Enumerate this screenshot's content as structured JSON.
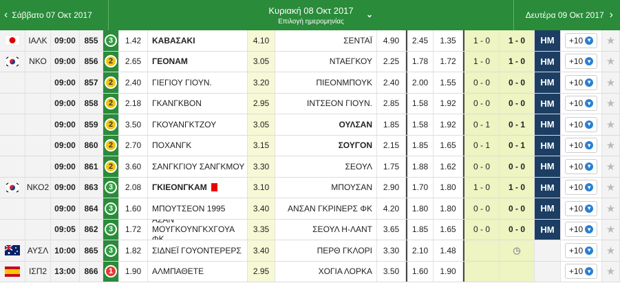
{
  "header": {
    "prev_day": "Σάββατο 07 Οκτ 2017",
    "current_day": "Κυριακή 08 Οκτ 2017",
    "date_picker": "Επιλογή ημερομηνίας",
    "next_day": "Δευτέρα 09 Οκτ 2017"
  },
  "table": {
    "rows": [
      {
        "flag": "jp",
        "league": "ΙΑΛΚ",
        "time": "09:00",
        "code": "855",
        "rank": "3",
        "rank_color": "#2e9e3e",
        "odd1": "1.42",
        "home": "ΚΑΒΑΣΑΚΙ",
        "oddx": "4.10",
        "away": "ΣΕΝΤΑΪ",
        "odd2": "4.90",
        "dc1": "2.45",
        "dc2": "1.35",
        "ht": "1 - 0",
        "ft": "1 - 0",
        "status": "ΗΜ",
        "more": "+10",
        "bold": "home"
      },
      {
        "flag": "kr",
        "league": "ΝΚΟ",
        "time": "09:00",
        "code": "856",
        "rank": "2",
        "rank_color": "#f2c511",
        "odd1": "2.65",
        "home": "ΓΕΟΝΑΜ",
        "oddx": "3.05",
        "away": "ΝΤΑΕΓΚΟΥ",
        "odd2": "2.25",
        "dc1": "1.78",
        "dc2": "1.72",
        "ht": "1 - 0",
        "ft": "1 - 0",
        "status": "ΗΜ",
        "more": "+10",
        "bold": "home"
      },
      {
        "time": "09:00",
        "code": "857",
        "rank": "2",
        "rank_color": "#f2c511",
        "odd1": "2.40",
        "home": "ΓΙΕΓΙΟΥ ΓΙΟΥΝ.",
        "oddx": "3.20",
        "away": "ΠΙΕΟΝΜΠΟΥΚ",
        "odd2": "2.40",
        "dc1": "2.00",
        "dc2": "1.55",
        "ht": "0 - 0",
        "ft": "0 - 0",
        "status": "ΗΜ",
        "more": "+10"
      },
      {
        "time": "09:00",
        "code": "858",
        "rank": "2",
        "rank_color": "#f2c511",
        "odd1": "2.18",
        "home": "ΓΚΑΝΓΚΒΟΝ",
        "oddx": "2.95",
        "away": "ΙΝΤΣΕΟΝ ΓΙΟΥΝ.",
        "odd2": "2.85",
        "dc1": "1.58",
        "dc2": "1.92",
        "ht": "0 - 0",
        "ft": "0 - 0",
        "status": "ΗΜ",
        "more": "+10"
      },
      {
        "time": "09:00",
        "code": "859",
        "rank": "2",
        "rank_color": "#f2c511",
        "odd1": "3.50",
        "home": "ΓΚΟΥΑΝΓΚΤΖΟΥ",
        "oddx": "3.05",
        "away": "ΟΥΛΣΑΝ",
        "odd2": "1.85",
        "dc1": "1.58",
        "dc2": "1.92",
        "ht": "0 - 1",
        "ft": "0 - 1",
        "status": "ΗΜ",
        "more": "+10",
        "bold": "away"
      },
      {
        "time": "09:00",
        "code": "860",
        "rank": "2",
        "rank_color": "#f2c511",
        "odd1": "2.70",
        "home": "ΠΟΧΑΝΓΚ",
        "oddx": "3.15",
        "away": "ΣΟΥΓΟΝ",
        "odd2": "2.15",
        "dc1": "1.85",
        "dc2": "1.65",
        "ht": "0 - 1",
        "ft": "0 - 1",
        "status": "ΗΜ",
        "more": "+10",
        "bold": "away"
      },
      {
        "time": "09:00",
        "code": "861",
        "rank": "2",
        "rank_color": "#f2c511",
        "odd1": "3.60",
        "home": "ΣΑΝΓΚΓΙΟΥ ΣΑΝΓΚΜΟΥ",
        "oddx": "3.30",
        "away": "ΣΕΟΥΛ",
        "odd2": "1.75",
        "dc1": "1.88",
        "dc2": "1.62",
        "ht": "0 - 0",
        "ft": "0 - 0",
        "status": "ΗΜ",
        "more": "+10"
      },
      {
        "flag": "kr",
        "league": "ΝΚΟ2",
        "time": "09:00",
        "code": "863",
        "rank": "3",
        "rank_color": "#2e9e3e",
        "odd1": "2.08",
        "home": "ΓΚΙΕΟΝΓΚΑΜ",
        "red_card": true,
        "oddx": "3.10",
        "away": "ΜΠΟΥΣΑΝ",
        "odd2": "2.90",
        "dc1": "1.70",
        "dc2": "1.80",
        "ht": "1 - 0",
        "ft": "1 - 0",
        "status": "ΗΜ",
        "more": "+10",
        "bold": "home"
      },
      {
        "time": "09:00",
        "code": "864",
        "rank": "3",
        "rank_color": "#2e9e3e",
        "odd1": "1.60",
        "home": "ΜΠΟΥΤΣΕΟΝ 1995",
        "oddx": "3.40",
        "away": "ΑΝΣΑΝ ΓΚΡΙΝΕΡΣ ΦΚ",
        "odd2": "4.20",
        "dc1": "1.80",
        "dc2": "1.80",
        "ht": "0 - 0",
        "ft": "0 - 0",
        "status": "ΗΜ",
        "more": "+10"
      },
      {
        "time": "09:05",
        "code": "862",
        "rank": "3",
        "rank_color": "#2e9e3e",
        "odd1": "1.72",
        "home": "ΑΣΑΝ ΜΟΥΓΚΟΥΝΓΚΧΓΟΥΑ ΦΚ",
        "oddx": "3.35",
        "away": "ΣΕΟΥΛ Η-ΛΑΝΤ",
        "odd2": "3.65",
        "dc1": "1.85",
        "dc2": "1.65",
        "ht": "0 - 0",
        "ft": "0 - 0",
        "status": "ΗΜ",
        "more": "+10"
      },
      {
        "flag": "au",
        "league": "ΑΥΣΛ",
        "time": "10:00",
        "code": "865",
        "rank": "3",
        "rank_color": "#2e9e3e",
        "odd1": "1.82",
        "home": "ΣΙΔΝΕΪ ΓΟΥΟΝΤΕΡΕΡΣ",
        "oddx": "3.40",
        "away": "ΠΕΡΘ ΓΚΛΟΡΙ",
        "odd2": "3.30",
        "dc1": "2.10",
        "dc2": "1.48",
        "clock": true,
        "more": "+10"
      },
      {
        "flag": "es",
        "league": "ΙΣΠ2",
        "time": "13:00",
        "code": "866",
        "rank": "1",
        "rank_color": "#e53935",
        "odd1": "1.90",
        "home": "ΑΛΜΠΑΘΕΤΕ",
        "oddx": "2.95",
        "away": "ΧΟΓΙΑ ΛΟΡΚΑ",
        "odd2": "3.50",
        "dc1": "1.60",
        "dc2": "1.90",
        "more": "+10"
      }
    ]
  }
}
